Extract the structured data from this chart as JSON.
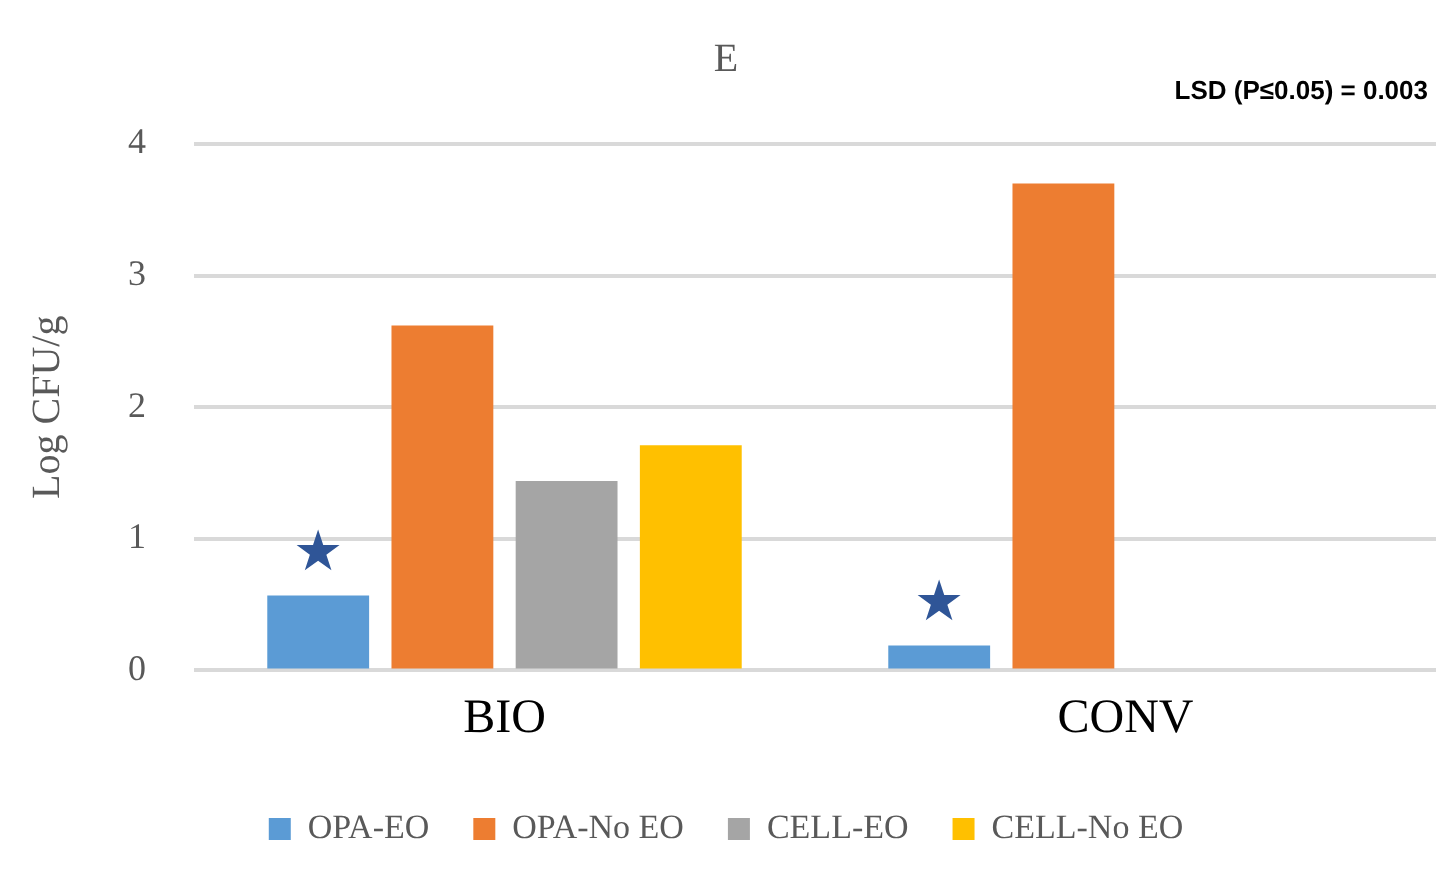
{
  "chart_data": {
    "type": "bar",
    "title": "E",
    "annotations": [
      "LSD (P≤0.05) = 0.003",
      "★",
      "★"
    ],
    "ylabel": "Log CFU/g",
    "categories": [
      "BIO",
      "CONV"
    ],
    "series": [
      {
        "name": "OPA-EO",
        "color": "#5b9bd5",
        "values": [
          0.57,
          0.19
        ]
      },
      {
        "name": "OPA-No EO",
        "color": "#ed7d31",
        "values": [
          2.62,
          3.7
        ]
      },
      {
        "name": "CELL-EO",
        "color": "#a5a5a5",
        "values": [
          1.44,
          null
        ]
      },
      {
        "name": "CELL-No EO",
        "color": "#ffc000",
        "values": [
          1.71,
          null
        ]
      }
    ],
    "ylim": [
      0,
      4
    ],
    "yticks": [
      0,
      1,
      2,
      3,
      4
    ],
    "grid": "y",
    "legend": "bottom"
  }
}
